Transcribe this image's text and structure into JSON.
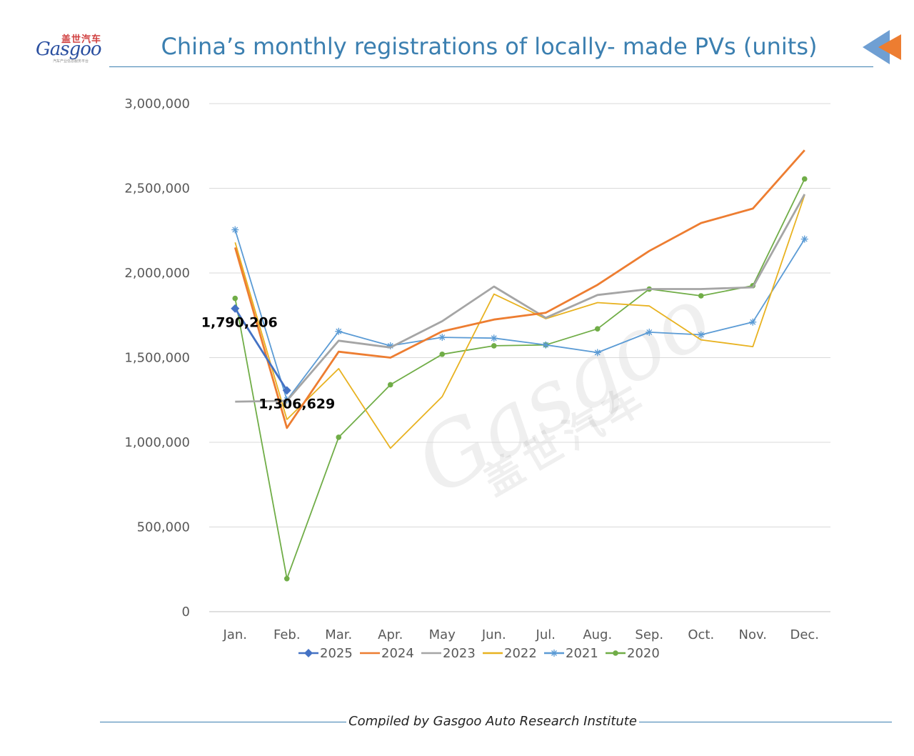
{
  "header": {
    "logo_cn": "盖世汽车",
    "logo_en": "Gasgoo",
    "logo_sub": "汽车产业信息服务平台",
    "title": "China’s monthly registrations of locally- made PVs (units)"
  },
  "footer": {
    "text": "Compiled by Gasgoo Auto Research Institute"
  },
  "colors": {
    "2025": "#4472c4",
    "2024": "#ed7d31",
    "2023": "#a5a5a5",
    "2022": "#e8b220",
    "2021": "#5b9bd5",
    "2020": "#70ad47",
    "grid": "#d9d9d9",
    "axis_text": "#595959",
    "title": "#3b7fb0"
  },
  "chart_data": {
    "type": "line",
    "title": "China’s monthly registrations of locally- made PVs (units)",
    "categories": [
      "Jan.",
      "Feb.",
      "Mar.",
      "Apr.",
      "May",
      "Jun.",
      "Jul.",
      "Aug.",
      "Sep.",
      "Oct.",
      "Nov.",
      "Dec."
    ],
    "ylim": [
      0,
      3000000
    ],
    "yticks": [
      0,
      500000,
      1000000,
      1500000,
      2000000,
      2500000,
      3000000
    ],
    "ytick_labels": [
      "0",
      "500,000",
      "1,000,000",
      "1,500,000",
      "2,000,000",
      "2,500,000",
      "3,000,000"
    ],
    "grid": true,
    "legend_position": "bottom",
    "series": [
      {
        "name": "2025",
        "marker": "diamond",
        "values": [
          1790206,
          1306629,
          null,
          null,
          null,
          null,
          null,
          null,
          null,
          null,
          null,
          null
        ]
      },
      {
        "name": "2024",
        "marker": "none",
        "values": [
          2150000,
          1085000,
          1535000,
          1500000,
          1655000,
          1725000,
          1765000,
          1930000,
          2130000,
          2295000,
          2380000,
          2725000
        ]
      },
      {
        "name": "2023",
        "marker": "none",
        "values": [
          1240000,
          1245000,
          1600000,
          1560000,
          1715000,
          1920000,
          1735000,
          1870000,
          1905000,
          1905000,
          1915000,
          2465000
        ]
      },
      {
        "name": "2022",
        "marker": "none",
        "values": [
          2180000,
          1135000,
          1435000,
          965000,
          1270000,
          1875000,
          1730000,
          1825000,
          1805000,
          1605000,
          1565000,
          2460000
        ]
      },
      {
        "name": "2021",
        "marker": "star",
        "values": [
          2255000,
          1250000,
          1655000,
          1570000,
          1620000,
          1615000,
          1575000,
          1530000,
          1650000,
          1635000,
          1710000,
          2200000
        ]
      },
      {
        "name": "2020",
        "marker": "circle",
        "values": [
          1850000,
          195000,
          1030000,
          1340000,
          1520000,
          1570000,
          1575000,
          1670000,
          1905000,
          1865000,
          1925000,
          2555000
        ]
      }
    ],
    "data_labels": [
      {
        "series": "2025",
        "index": 0,
        "text": "1,790,206"
      },
      {
        "series": "2025",
        "index": 1,
        "text": "1,306,629"
      }
    ]
  }
}
